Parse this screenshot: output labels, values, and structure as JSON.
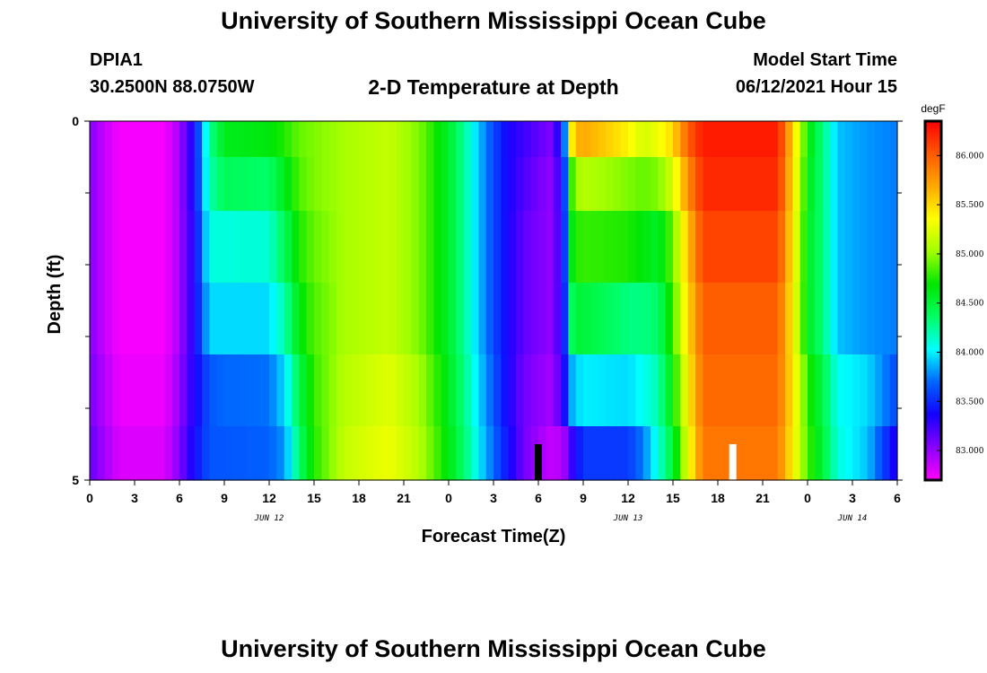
{
  "header": {
    "title": "University of Southern Mississippi Ocean Cube",
    "station": "DPIA1",
    "coords": "30.2500N  88.0750W",
    "subtitle": "2-D Temperature at Depth",
    "start_label": "Model Start Time",
    "start_value": "06/12/2021 Hour 15"
  },
  "footer": {
    "title": "University of Southern Mississippi Ocean Cube"
  },
  "chart_data": {
    "type": "heatmap",
    "title": "2-D Temperature at Depth",
    "xlabel": "Forecast Time(Z)",
    "ylabel": "Depth (ft)",
    "x_range_hours": [
      0,
      54
    ],
    "x_ticks": [
      {
        "h": 0,
        "label": "0"
      },
      {
        "h": 3,
        "label": "3"
      },
      {
        "h": 6,
        "label": "6"
      },
      {
        "h": 9,
        "label": "9"
      },
      {
        "h": 12,
        "label": "12"
      },
      {
        "h": 15,
        "label": "15"
      },
      {
        "h": 18,
        "label": "18"
      },
      {
        "h": 21,
        "label": "21"
      },
      {
        "h": 24,
        "label": "0"
      },
      {
        "h": 27,
        "label": "3"
      },
      {
        "h": 30,
        "label": "6"
      },
      {
        "h": 33,
        "label": "9"
      },
      {
        "h": 36,
        "label": "12"
      },
      {
        "h": 39,
        "label": "15"
      },
      {
        "h": 42,
        "label": "18"
      },
      {
        "h": 45,
        "label": "21"
      },
      {
        "h": 48,
        "label": "0"
      },
      {
        "h": 51,
        "label": "3"
      },
      {
        "h": 54,
        "label": "6"
      }
    ],
    "date_labels": [
      {
        "h": 12,
        "label": "JUN 12"
      },
      {
        "h": 36,
        "label": "JUN 13"
      },
      {
        "h": 51,
        "label": "JUN 14"
      }
    ],
    "y_range": [
      0,
      5
    ],
    "y_labels": [
      {
        "v": 0,
        "label": "0"
      },
      {
        "v": 5,
        "label": "5"
      }
    ],
    "y_minor_ticks": [
      1,
      2,
      3,
      4
    ],
    "depth_levels": [
      0.25,
      0.75,
      1.75,
      2.75,
      3.75,
      4.75
    ],
    "colorbar": {
      "unit": "degF",
      "min": 82.7,
      "max": 86.35,
      "ticks": [
        83.0,
        83.5,
        84.0,
        84.5,
        85.0,
        85.5,
        86.0
      ],
      "tick_labels": [
        "83.000",
        "83.500",
        "84.000",
        "84.500",
        "85.000",
        "85.500",
        "86.000"
      ],
      "colors": [
        "#ff00ff",
        "#8a00ff",
        "#1400ff",
        "#0064ff",
        "#00ffff",
        "#00ff64",
        "#00e600",
        "#a0ff00",
        "#ffff00",
        "#ffaa00",
        "#ff5a00",
        "#ff0000"
      ]
    },
    "profiles": [
      {
        "h": 0,
        "t": [
          83.05,
          83.05,
          83.05,
          83.05,
          83.1,
          83.15
        ]
      },
      {
        "h": 1,
        "t": [
          82.85,
          82.85,
          82.85,
          82.85,
          82.9,
          82.95
        ]
      },
      {
        "h": 2,
        "t": [
          82.72,
          82.72,
          82.72,
          82.72,
          82.75,
          82.8
        ]
      },
      {
        "h": 5,
        "t": [
          82.72,
          82.72,
          82.72,
          82.72,
          82.75,
          82.8
        ]
      },
      {
        "h": 6,
        "t": [
          82.95,
          82.95,
          82.95,
          82.95,
          83.0,
          83.05
        ]
      },
      {
        "h": 7,
        "t": [
          83.4,
          83.4,
          83.35,
          83.35,
          83.35,
          83.4
        ]
      },
      {
        "h": 8,
        "t": [
          84.25,
          84.2,
          84.1,
          83.95,
          83.65,
          83.65
        ]
      },
      {
        "h": 9,
        "t": [
          84.6,
          84.4,
          84.1,
          83.95,
          83.7,
          83.65
        ]
      },
      {
        "h": 12,
        "t": [
          84.65,
          84.35,
          84.12,
          83.95,
          83.72,
          83.68
        ]
      },
      {
        "h": 13,
        "t": [
          84.75,
          84.6,
          84.4,
          84.2,
          83.95,
          83.8
        ]
      },
      {
        "h": 14,
        "t": [
          84.9,
          84.85,
          84.75,
          84.65,
          84.45,
          84.35
        ]
      },
      {
        "h": 15,
        "t": [
          84.95,
          84.95,
          84.9,
          84.85,
          84.8,
          84.75
        ]
      },
      {
        "h": 17,
        "t": [
          85.05,
          85.05,
          85.05,
          85.05,
          85.1,
          85.15
        ]
      },
      {
        "h": 20,
        "t": [
          85.15,
          85.15,
          85.15,
          85.15,
          85.25,
          85.3
        ]
      },
      {
        "h": 22,
        "t": [
          84.95,
          84.95,
          84.95,
          84.95,
          85.05,
          85.1
        ]
      },
      {
        "h": 24,
        "t": [
          84.55,
          84.55,
          84.55,
          84.55,
          84.6,
          84.65
        ]
      },
      {
        "h": 25,
        "t": [
          84.25,
          84.25,
          84.25,
          84.25,
          84.3,
          84.35
        ]
      },
      {
        "h": 26,
        "t": [
          83.9,
          83.9,
          83.9,
          83.9,
          83.95,
          84.0
        ]
      },
      {
        "h": 27,
        "t": [
          83.6,
          83.6,
          83.6,
          83.6,
          83.65,
          83.7
        ]
      },
      {
        "h": 28,
        "t": [
          83.35,
          83.35,
          83.35,
          83.35,
          83.35,
          83.4
        ]
      },
      {
        "h": 29,
        "t": [
          83.25,
          83.2,
          83.15,
          83.15,
          83.1,
          83.1
        ]
      },
      {
        "h": 31,
        "t": [
          83.05,
          83.0,
          83.0,
          83.0,
          82.95,
          82.85
        ]
      },
      {
        "h": 31.8,
        "t": [
          83.8,
          83.65,
          83.6,
          83.55,
          83.45,
          83.0
        ]
      },
      {
        "h": 32.3,
        "t": [
          85.6,
          84.95,
          84.75,
          84.5,
          83.9,
          83.3
        ]
      },
      {
        "h": 33,
        "t": [
          85.7,
          85.1,
          84.8,
          84.5,
          84.0,
          83.55
        ]
      },
      {
        "h": 36,
        "t": [
          85.4,
          84.95,
          84.75,
          84.3,
          83.95,
          83.55
        ]
      },
      {
        "h": 37,
        "t": [
          85.2,
          84.9,
          84.65,
          84.3,
          84.05,
          83.75
        ]
      },
      {
        "h": 38,
        "t": [
          85.3,
          84.95,
          84.55,
          84.35,
          84.2,
          84.1
        ]
      },
      {
        "h": 39,
        "t": [
          85.5,
          85.2,
          84.9,
          84.8,
          84.65,
          84.5
        ]
      },
      {
        "h": 40,
        "t": [
          86.0,
          85.8,
          85.6,
          85.5,
          85.4,
          85.3
        ]
      },
      {
        "h": 41,
        "t": [
          86.25,
          86.2,
          86.1,
          86.0,
          85.95,
          85.9
        ]
      },
      {
        "h": 46,
        "t": [
          86.25,
          86.2,
          86.1,
          86.0,
          85.95,
          85.9
        ]
      },
      {
        "h": 47,
        "t": [
          85.55,
          85.5,
          85.45,
          85.4,
          85.45,
          85.4
        ]
      },
      {
        "h": 48,
        "t": [
          84.7,
          84.65,
          84.6,
          84.6,
          84.8,
          84.85
        ]
      },
      {
        "h": 49,
        "t": [
          84.3,
          84.3,
          84.3,
          84.3,
          84.45,
          84.5
        ]
      },
      {
        "h": 50,
        "t": [
          83.9,
          83.9,
          83.9,
          83.9,
          84.05,
          84.1
        ]
      },
      {
        "h": 52,
        "t": [
          83.8,
          83.8,
          83.8,
          83.8,
          83.95,
          83.9
        ]
      },
      {
        "h": 54,
        "t": [
          83.75,
          83.75,
          83.75,
          83.75,
          83.6,
          83.3
        ]
      }
    ],
    "markers": [
      {
        "h": 30,
        "color": "#000000"
      },
      {
        "h": 43,
        "color": "#ffffff"
      }
    ]
  }
}
